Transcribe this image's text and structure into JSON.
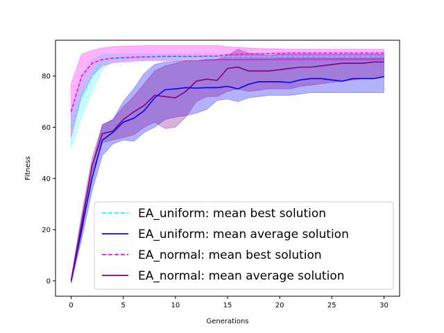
{
  "chart_data": {
    "type": "line",
    "title": "",
    "xlabel": "Generations",
    "ylabel": "Fitness",
    "xlim": [
      -1.5,
      31.5
    ],
    "ylim": [
      -6,
      94
    ],
    "xticks": [
      0,
      5,
      10,
      15,
      20,
      25,
      30
    ],
    "yticks": [
      0,
      20,
      40,
      60,
      80
    ],
    "grid": false,
    "legend_position": "lower right",
    "x": [
      0,
      1,
      2,
      3,
      4,
      5,
      6,
      7,
      8,
      9,
      10,
      11,
      12,
      13,
      14,
      15,
      16,
      17,
      18,
      19,
      20,
      21,
      22,
      23,
      24,
      25,
      26,
      27,
      28,
      29,
      30
    ],
    "series": [
      {
        "name": "EA_uniform: mean best solution",
        "color": "#00ffff",
        "style": "dashed",
        "values": [
          60,
          72,
          80,
          86,
          86.8,
          87,
          87.2,
          87.3,
          87.4,
          87.5,
          87.5,
          87.5,
          87.5,
          87.5,
          87.6,
          87.6,
          87.6,
          87.6,
          87.6,
          87.6,
          87.7,
          87.7,
          87.7,
          87.7,
          87.7,
          87.7,
          87.7,
          87.7,
          87.7,
          87.7,
          87.7
        ],
        "lower": [
          52,
          64,
          74,
          83,
          85.5,
          86,
          86.3,
          86.4,
          86.5,
          86.5,
          86.5,
          86.6,
          86.6,
          86.6,
          86.6,
          86.6,
          86.6,
          86.6,
          86.6,
          86.6,
          86.6,
          86.6,
          86.6,
          86.6,
          86.6,
          86.6,
          86.6,
          86.6,
          86.6,
          86.6,
          86.6
        ],
        "upper": [
          67,
          80,
          86,
          88.5,
          88.5,
          88.6,
          88.6,
          88.6,
          88.6,
          88.6,
          88.6,
          88.6,
          88.6,
          88.6,
          88.6,
          88.6,
          88.6,
          88.6,
          88.6,
          88.6,
          88.6,
          88.6,
          88.6,
          88.6,
          88.6,
          88.6,
          88.6,
          88.6,
          88.6,
          88.6,
          88.6
        ]
      },
      {
        "name": "EA_uniform: mean average solution",
        "color": "#0000ff",
        "style": "solid",
        "values": [
          0,
          20,
          40,
          55,
          58,
          62,
          63.5,
          66.5,
          71.5,
          74.7,
          75,
          75.5,
          75.3,
          75.5,
          75.5,
          76,
          75,
          76.8,
          77.8,
          77.8,
          77.8,
          77.5,
          78.5,
          79,
          79,
          78.5,
          78,
          79,
          79,
          79,
          79.8
        ],
        "lower": [
          -1,
          16,
          35,
          49,
          53.5,
          55,
          54.5,
          58,
          60,
          63,
          64,
          64.5,
          65.5,
          67,
          70.5,
          71,
          70,
          71.5,
          72,
          72.5,
          72.5,
          72.5,
          73,
          73.5,
          73.5,
          73.5,
          73.5,
          73.5,
          73.5,
          73.5,
          73.5
        ],
        "upper": [
          1,
          24,
          45,
          61,
          63,
          70,
          75,
          81,
          84.5,
          85.5,
          85.8,
          86,
          86,
          86.3,
          86.5,
          86.6,
          86.6,
          86.7,
          86.7,
          86.7,
          86.8,
          86.8,
          86.8,
          86.8,
          86.8,
          86.8,
          86.8,
          86.8,
          86.8,
          86.8,
          86.8
        ]
      },
      {
        "name": "EA_normal: mean best solution",
        "color": "#ff00ff",
        "style": "dashed",
        "values": [
          66,
          80,
          85,
          86.5,
          87,
          87.2,
          87.4,
          87.5,
          87.6,
          87.7,
          87.7,
          87.7,
          87.7,
          87.8,
          87.8,
          88.3,
          88.5,
          88.6,
          88.7,
          88.8,
          88.9,
          89,
          89,
          89,
          89,
          89,
          89,
          89,
          89,
          89,
          89
        ],
        "lower": [
          56,
          72,
          80,
          84,
          85.2,
          85.5,
          85.8,
          86,
          86,
          86,
          86,
          86,
          86,
          86.1,
          86.1,
          86.2,
          86.2,
          86.2,
          86.2,
          86.3,
          86.3,
          86.3,
          86.3,
          86.3,
          86.3,
          86.3,
          86.3,
          86.3,
          86.3,
          86.3,
          86.3
        ],
        "upper": [
          77,
          88.5,
          90,
          91,
          91.5,
          91.7,
          91.8,
          91.9,
          92,
          92,
          92,
          92,
          92,
          92,
          92,
          91.5,
          91.2,
          91,
          90.8,
          90.7,
          90.6,
          90.5,
          90.5,
          90.5,
          90.5,
          90.5,
          90.5,
          90.5,
          90.5,
          90.5,
          90.5
        ]
      },
      {
        "name": "EA_normal: mean average solution",
        "color": "#800080",
        "style": "solid",
        "values": [
          0,
          22,
          45,
          57.5,
          58.5,
          63,
          66,
          68.5,
          72.5,
          72,
          71.5,
          74,
          78,
          78.8,
          78.3,
          83,
          83.5,
          82,
          82,
          82,
          82.5,
          83,
          83.5,
          83.5,
          84,
          84.5,
          85,
          85,
          85,
          85.5,
          85.5
        ],
        "lower": [
          -1,
          18,
          42,
          54,
          55,
          56,
          57,
          60,
          62,
          59.5,
          60,
          64,
          70,
          72,
          72,
          74,
          75,
          74,
          74.5,
          75,
          75,
          75,
          76,
          76.5,
          77,
          77.5,
          78,
          78.5,
          79,
          79,
          79.5
        ],
        "upper": [
          1,
          26,
          48,
          61,
          63,
          68,
          72,
          77,
          82,
          84,
          85,
          86,
          86,
          86.5,
          86.5,
          88,
          90.5,
          89,
          88.5,
          88,
          88.5,
          88.5,
          88.5,
          88.5,
          88.5,
          88.5,
          88.5,
          88.5,
          88.5,
          88.5,
          88.5
        ]
      }
    ]
  }
}
